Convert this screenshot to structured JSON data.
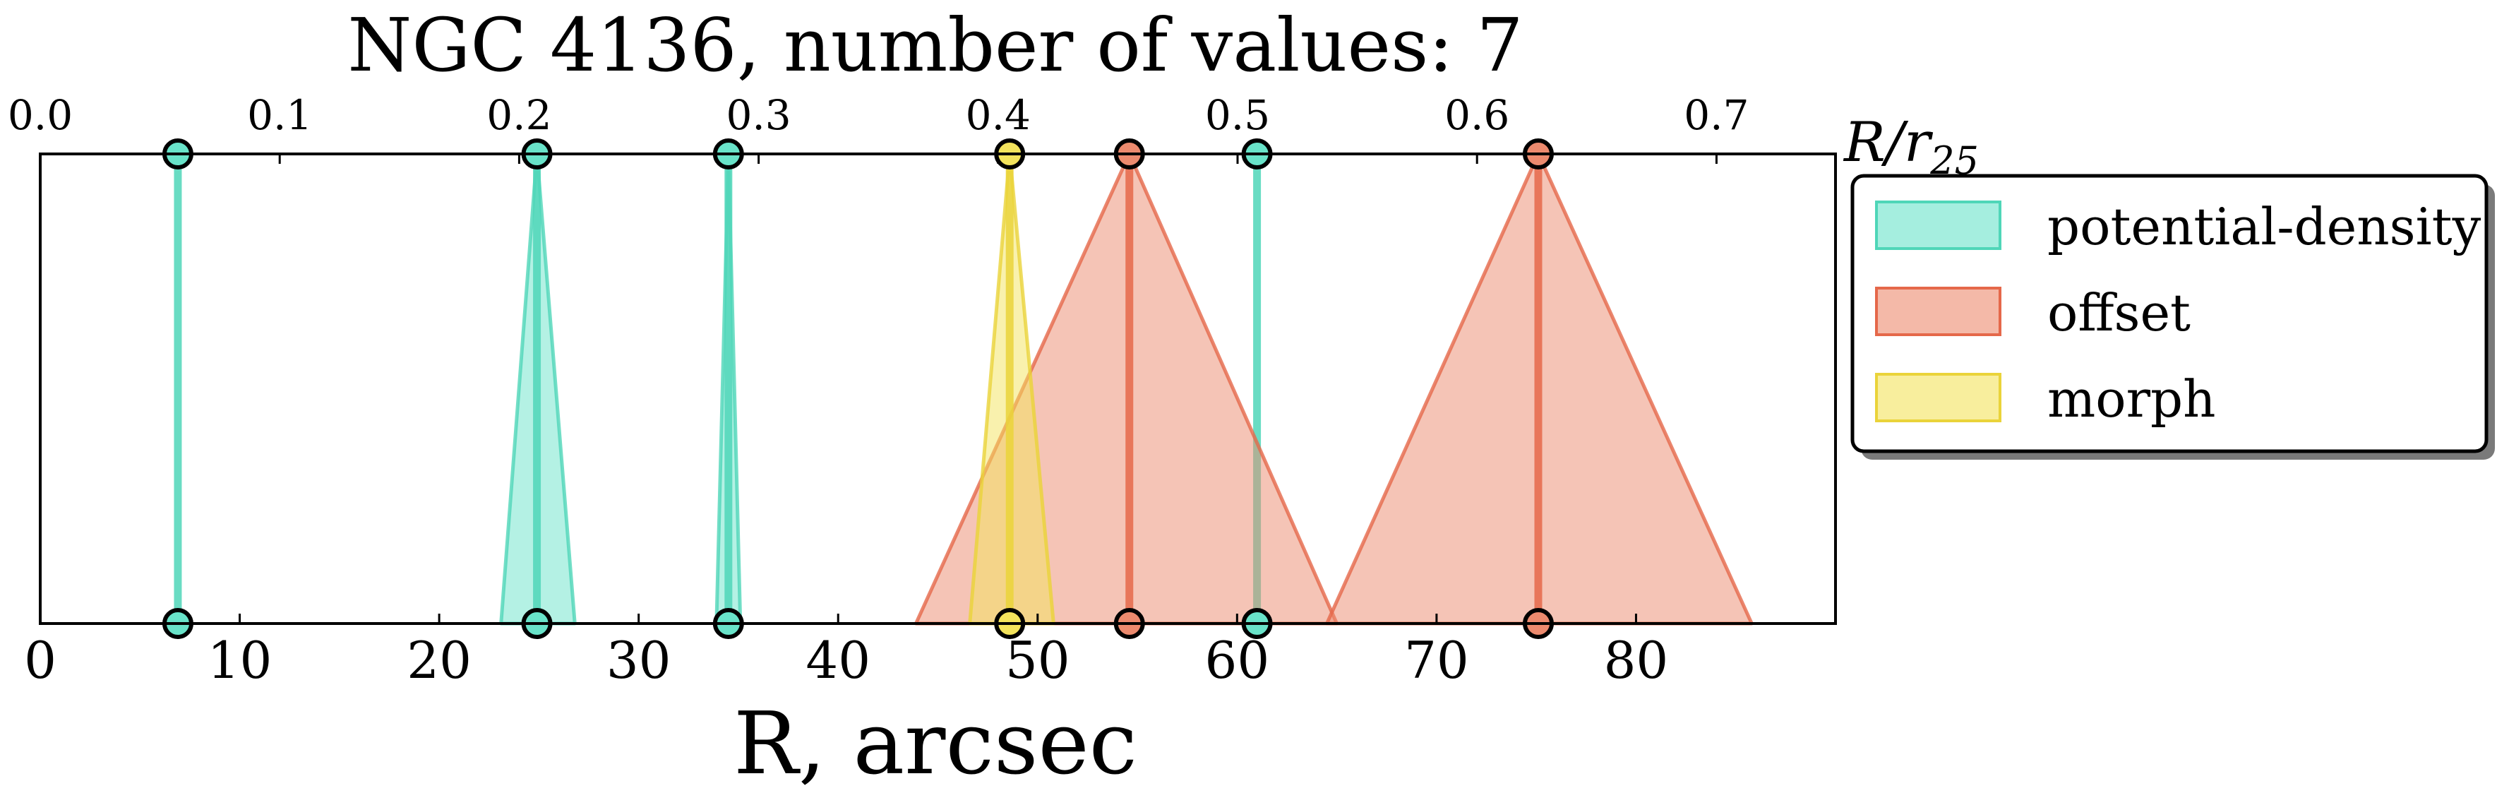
{
  "chart_data": {
    "type": "area",
    "title": "NGC 4136, number of values: 7",
    "xlabel": "R, arcsec",
    "top_axis_label": "R/r",
    "top_axis_label_sub": "25",
    "xlim": [
      0,
      90
    ],
    "top_axis_scale": 0.00833,
    "x_ticks": [
      0,
      10,
      20,
      30,
      40,
      50,
      60,
      70,
      80
    ],
    "x_tick_labels": [
      "0",
      "10",
      "20",
      "30",
      "40",
      "50",
      "60",
      "70",
      "80"
    ],
    "top_ticks": [
      0.0,
      0.1,
      0.2,
      0.3,
      0.4,
      0.5,
      0.6,
      0.7
    ],
    "top_tick_labels": [
      "0.0",
      "0.1",
      "0.2",
      "0.3",
      "0.4",
      "0.5",
      "0.6",
      "0.7"
    ],
    "legend_position": "outside-right",
    "series": [
      {
        "name": "potential-density",
        "color": "#69e3c9",
        "edge_color": "#4fd6b8",
        "points": [
          {
            "center": 6.9,
            "low": 6.9,
            "high": 6.9
          },
          {
            "center": 24.9,
            "low": 23.1,
            "high": 26.8
          },
          {
            "center": 34.5,
            "low": 33.9,
            "high": 35.1
          },
          {
            "center": 61.0,
            "low": 61.0,
            "high": 61.0
          }
        ]
      },
      {
        "name": "offset",
        "color": "#ec8a6e",
        "edge_color": "#e5684a",
        "points": [
          {
            "center": 54.6,
            "low": 43.9,
            "high": 65.0
          },
          {
            "center": 75.1,
            "low": 64.5,
            "high": 85.8
          }
        ]
      },
      {
        "name": "morph",
        "color": "#f3e35c",
        "edge_color": "#ead33a",
        "points": [
          {
            "center": 48.6,
            "low": 46.6,
            "high": 50.8
          }
        ]
      }
    ]
  }
}
